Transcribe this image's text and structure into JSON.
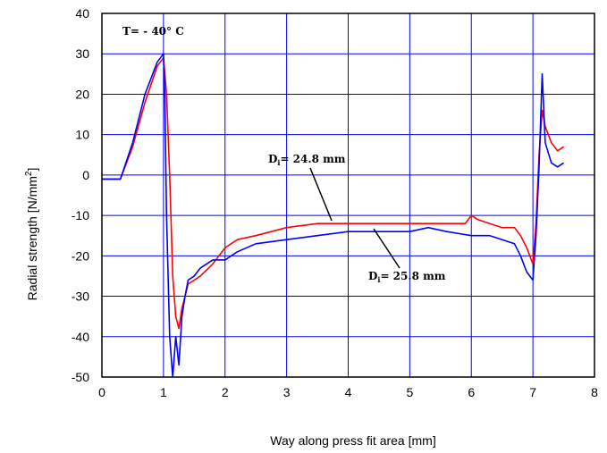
{
  "chart_data": {
    "type": "line",
    "title": "",
    "xlabel": "Way along press fit area [mm]",
    "ylabel": "Radial strength [N/mm",
    "ylabel_sup": "2",
    "ylabel_end": "]",
    "xlim": [
      0,
      8
    ],
    "ylim": [
      -50,
      40
    ],
    "x_ticks": [
      0,
      1,
      2,
      3,
      4,
      5,
      6,
      7,
      8
    ],
    "y_ticks": [
      40,
      30,
      20,
      10,
      0,
      -10,
      -20,
      -30,
      -40,
      -50
    ],
    "grid": true,
    "colors": {
      "grid": "#0000ee",
      "frame": "#000000",
      "series_red": "#ff0000",
      "series_blue": "#0000ff"
    },
    "annotations": {
      "temperature": "T= - 40° C",
      "d_red_label": "D",
      "d_red_sub": "i",
      "d_red_value": "= 24.8 mm",
      "d_blue_label": "D",
      "d_blue_sub": "i",
      "d_blue_value": "= 25.8 mm"
    },
    "series": [
      {
        "color": "#ff0000",
        "x": [
          0,
          0.2,
          0.3,
          0.5,
          0.7,
          0.9,
          1.0,
          1.05,
          1.1,
          1.15,
          1.2,
          1.25,
          1.3,
          1.35,
          1.4,
          1.5,
          1.6,
          1.8,
          2.0,
          2.2,
          2.5,
          3.0,
          3.5,
          4.0,
          4.5,
          5.0,
          5.5,
          5.9,
          6.0,
          6.1,
          6.3,
          6.5,
          6.7,
          6.8,
          6.9,
          7.0,
          7.05,
          7.1,
          7.15,
          7.2,
          7.3,
          7.4,
          7.5
        ],
        "y": [
          -1,
          -1,
          -1,
          7,
          18,
          27,
          29,
          20,
          0,
          -25,
          -35,
          -38,
          -33,
          -30,
          -27,
          -26,
          -25,
          -22,
          -18,
          -16,
          -15,
          -13,
          -12,
          -12,
          -12,
          -12,
          -12,
          -12,
          -10,
          -11,
          -12,
          -13,
          -13,
          -15,
          -18,
          -22,
          -12,
          5,
          16,
          12,
          8,
          6,
          7
        ]
      },
      {
        "color": "#0000ff",
        "x": [
          0,
          0.2,
          0.3,
          0.5,
          0.7,
          0.9,
          1.0,
          1.02,
          1.05,
          1.1,
          1.15,
          1.2,
          1.25,
          1.3,
          1.35,
          1.4,
          1.5,
          1.6,
          1.8,
          2.0,
          2.2,
          2.5,
          3.0,
          3.5,
          4.0,
          4.5,
          5.0,
          5.3,
          5.6,
          6.0,
          6.3,
          6.5,
          6.7,
          6.8,
          6.9,
          7.0,
          7.05,
          7.1,
          7.15,
          7.2,
          7.3,
          7.4,
          7.5
        ],
        "y": [
          -1,
          -1,
          -1,
          8,
          20,
          28,
          30,
          20,
          -10,
          -40,
          -50,
          -40,
          -47,
          -35,
          -30,
          -26,
          -25,
          -23,
          -21,
          -21,
          -19,
          -17,
          -16,
          -15,
          -14,
          -14,
          -14,
          -13,
          -14,
          -15,
          -15,
          -16,
          -17,
          -20,
          -24,
          -26,
          -15,
          2,
          25,
          8,
          3,
          2,
          3
        ]
      }
    ]
  }
}
